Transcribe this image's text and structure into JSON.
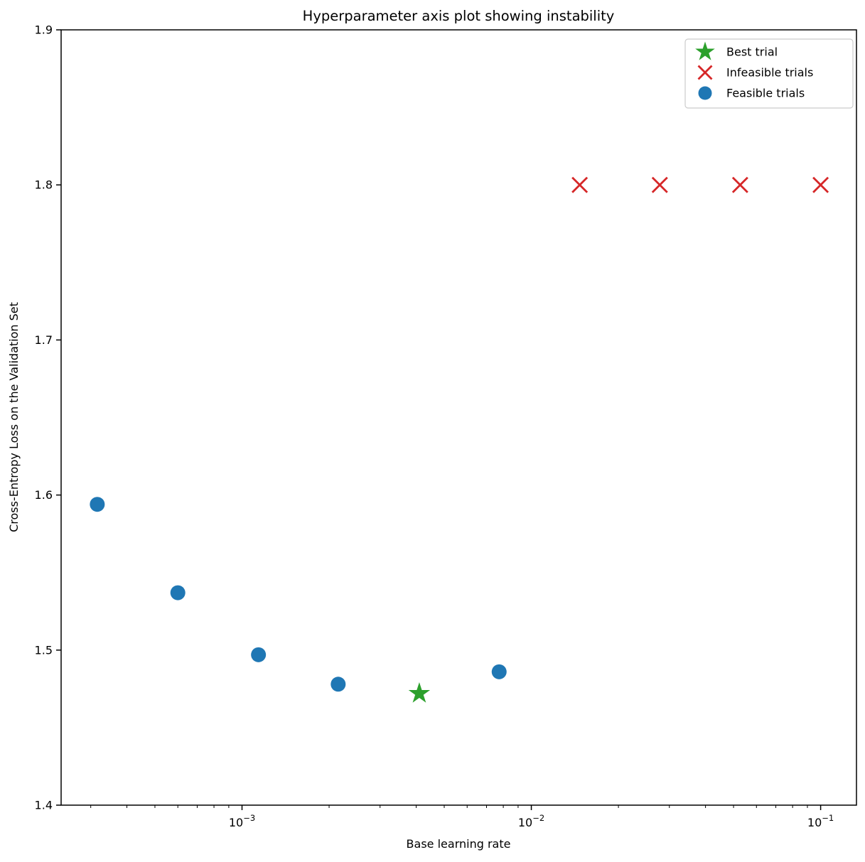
{
  "chart_data": {
    "type": "scatter",
    "title": "Hyperparameter axis plot showing instability",
    "xlabel": "Base learning rate",
    "ylabel": "Cross-Entropy Loss on the Validation Set",
    "x_scale": "log",
    "xlim": [
      0.000237,
      0.133
    ],
    "ylim": [
      1.4,
      1.9
    ],
    "x_ticks": [
      0.001,
      0.01,
      0.1
    ],
    "x_tick_labels": [
      "10^-3",
      "10^-2",
      "10^-1"
    ],
    "y_ticks": [
      1.4,
      1.5,
      1.6,
      1.7,
      1.8,
      1.9
    ],
    "grid": false,
    "legend_position": "upper right",
    "series": [
      {
        "name": "Best trial",
        "marker": "star",
        "color": "#2ca02c",
        "points": [
          {
            "x": 0.0041,
            "y": 1.472
          }
        ]
      },
      {
        "name": "Infeasible trials",
        "marker": "x",
        "color": "#d62728",
        "points": [
          {
            "x": 0.0147,
            "y": 1.8
          },
          {
            "x": 0.0278,
            "y": 1.8
          },
          {
            "x": 0.0527,
            "y": 1.8
          },
          {
            "x": 0.1,
            "y": 1.8
          }
        ]
      },
      {
        "name": "Feasible trials",
        "marker": "circle",
        "color": "#1f77b4",
        "points": [
          {
            "x": 0.000316,
            "y": 1.594
          },
          {
            "x": 0.0006,
            "y": 1.537
          },
          {
            "x": 0.00114,
            "y": 1.497
          },
          {
            "x": 0.00215,
            "y": 1.478
          },
          {
            "x": 0.00774,
            "y": 1.486
          }
        ]
      }
    ]
  }
}
